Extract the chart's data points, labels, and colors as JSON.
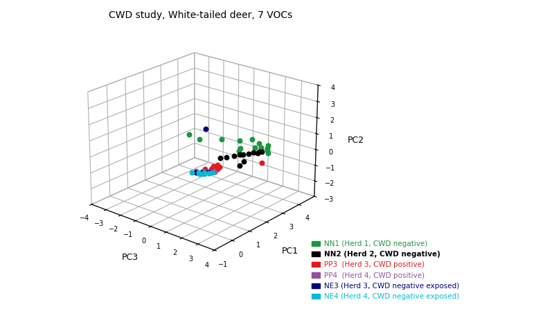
{
  "title": "CWD study, White-tailed deer, 7 VOCs",
  "xlabel": "PC3",
  "ylabel": "PC1",
  "zlabel": "PC2",
  "xlim": [
    -4,
    4
  ],
  "ylim": [
    -1,
    5
  ],
  "zlim": [
    -3,
    4
  ],
  "xticks": [
    -4,
    -3,
    -2,
    -1,
    0,
    1,
    2,
    3,
    4
  ],
  "yticks": [
    -1,
    0,
    1,
    2,
    3,
    4
  ],
  "zticks": [
    -3,
    -2,
    -1,
    0,
    1,
    2,
    3,
    4
  ],
  "elev": 22,
  "azim": -50,
  "groups": {
    "NN1": {
      "label": "NN1 (Herd 1, CWD negative)",
      "color": "#1a9641",
      "marker": "o",
      "size": 22,
      "pc3": [
        -2.2,
        -1.4,
        -0.5,
        0.3,
        0.7,
        1.0,
        1.15,
        1.3,
        1.5,
        1.7,
        1.85,
        2.0,
        2.2,
        2.45
      ],
      "pc1": [
        3.1,
        3.0,
        3.5,
        3.85,
        4.25,
        3.25,
        3.05,
        4.1,
        3.65,
        3.85,
        4.15,
        3.95,
        3.75,
        3.55
      ],
      "pc2_val": 0.0,
      "hull_color": "#b2e5b2",
      "hull_alpha": 0.45,
      "hull_edge": "#1a9641"
    },
    "NN2": {
      "label": "NN2 (Herd 2, CWD negative)",
      "color": "#000000",
      "marker": "o",
      "size": 22,
      "pc3": [
        1.0,
        1.2,
        1.35,
        1.5,
        1.6,
        1.75,
        1.85,
        2.0,
        2.1,
        2.2,
        2.35
      ],
      "pc1": [
        2.05,
        2.25,
        2.55,
        2.75,
        2.85,
        3.05,
        3.25,
        3.45,
        3.5,
        2.35,
        1.95
      ],
      "pc2_val": 0.0,
      "hull_color": "#aaaaaa",
      "hull_alpha": 0.5,
      "hull_edge": "#333333"
    },
    "PP3": {
      "label": "PP3  (Herd 3, CWD positive)",
      "color": "#e41a1c",
      "marker": "o",
      "size": 22,
      "pc3": [
        1.35,
        1.45,
        1.55,
        1.65,
        1.75,
        1.82
      ],
      "pc1": [
        0.85,
        1.25,
        1.05,
        0.95,
        1.35,
        1.15
      ],
      "pc2_val": 0.0,
      "hull_color": "#ffbbbb",
      "hull_alpha": 0.45,
      "hull_edge": "#e41a1c"
    },
    "PP4": {
      "label": "PP4  (Herd 4, CWD positive)",
      "color": "#984ea3",
      "marker": "o",
      "size": 22,
      "pc3": [
        1.2,
        1.4,
        1.6,
        1.7,
        1.8,
        1.9
      ],
      "pc1": [
        0.5,
        0.7,
        0.6,
        0.8,
        0.7,
        0.9
      ],
      "pc2_val": 0.0,
      "hull_color": "#dda0dd",
      "hull_alpha": 0.4,
      "hull_edge": "#984ea3"
    },
    "NE3": {
      "label": "NE3 (Herd 3, CWD negative exposed)",
      "color": "#000080",
      "marker": "o",
      "size": 22,
      "pc3": [
        1.3,
        1.45,
        1.55,
        1.65,
        1.75
      ],
      "pc1": [
        0.4,
        0.55,
        0.5,
        0.65,
        0.75
      ],
      "pc2_val": 0.0,
      "hull_color": null,
      "hull_alpha": 0.0,
      "hull_edge": null
    },
    "NE4": {
      "label": "NE4 (Herd 4, CWD negative exposed)",
      "color": "#00bcd4",
      "marker": "o",
      "size": 22,
      "pc3": [
        1.15,
        1.35,
        1.5,
        1.6,
        1.7,
        1.8,
        1.9
      ],
      "pc1": [
        0.3,
        0.5,
        0.4,
        0.6,
        0.5,
        0.7,
        0.8
      ],
      "pc2_val": 0.0,
      "hull_color": "#aaeeff",
      "hull_alpha": 0.45,
      "hull_edge": "#00bcd4"
    }
  },
  "outliers": [
    {
      "pc3": -2.1,
      "pc1": 4.0,
      "pc2": 0.0,
      "color": "#000080"
    },
    {
      "pc3": 3.0,
      "pc1": 2.65,
      "pc2": 0.0,
      "color": "#e41a1c"
    },
    {
      "pc3": 1.5,
      "pc1": 1.45,
      "pc2": 0.0,
      "color": "#e41a1c"
    },
    {
      "pc3": 2.05,
      "pc1": 3.3,
      "pc2": 0.0,
      "color": "#000000"
    }
  ],
  "legend_entries": [
    {
      "label": "NN1 (Herd 1, CWD negative)",
      "color": "#1a9641",
      "bold": false
    },
    {
      "label": "NN2 (Herd 2, CWD negative)",
      "color": "#000000",
      "bold": true
    },
    {
      "label": "PP3  (Herd 3, CWD positive)",
      "color": "#e41a1c",
      "bold": false
    },
    {
      "label": "PP4  (Herd 4, CWD positive)",
      "color": "#984ea3",
      "bold": false
    },
    {
      "label": "NE3 (Herd 3, CWD negative exposed)",
      "color": "#000080",
      "bold": false
    },
    {
      "label": "NE4 (Herd 4, CWD negative exposed)",
      "color": "#00bcd4",
      "bold": false
    }
  ],
  "background_color": "#ffffff"
}
